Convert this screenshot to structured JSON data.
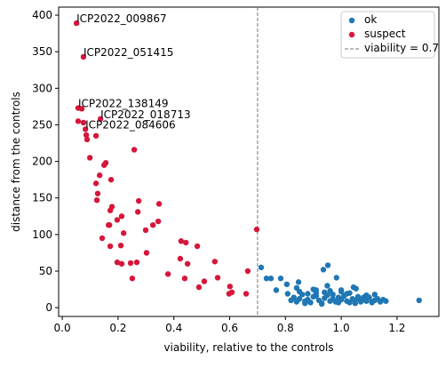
{
  "chart_data": {
    "type": "scatter",
    "x_label": "viability, relative to the controls",
    "y_label": "distance from the controls",
    "xlim": [
      -0.013,
      1.35
    ],
    "ylim": [
      -12,
      411
    ],
    "xticks": [
      {
        "value": 0,
        "label": "0.0"
      },
      0.2,
      0.4,
      0.6,
      0.8,
      {
        "value": 1,
        "label": "1.0"
      },
      1.2
    ],
    "yticks": [
      0,
      50,
      100,
      150,
      200,
      250,
      300,
      350,
      400
    ],
    "legend": "upper right",
    "vline": {
      "x": 0.7,
      "label": "viability = 0.7",
      "color": "#777777"
    },
    "series": [
      {
        "name": "ok",
        "color": "#1f77b4",
        "x": [
          0.82,
          0.83,
          0.84,
          0.85,
          0.86,
          0.87,
          0.88,
          0.89,
          0.9,
          0.91,
          0.92,
          0.93,
          0.94,
          0.95,
          0.96,
          0.97,
          0.98,
          0.99,
          1.0,
          1.01,
          1.02,
          1.03,
          1.04,
          1.05,
          1.06,
          1.07,
          1.08,
          1.09,
          1.1,
          1.11,
          1.12,
          1.13,
          1.14,
          1.15,
          1.16,
          0.85,
          0.88,
          0.91,
          0.94,
          0.97,
          1.0,
          1.03,
          1.06,
          1.09,
          0.87,
          0.93,
          0.99,
          1.05,
          1.11,
          0.9,
          0.96,
          1.02,
          1.08,
          0.84,
          0.95,
          1.0,
          1.12,
          0.713,
          0.732,
          0.748,
          0.783,
          0.767,
          0.805,
          0.808,
          0.847,
          0.936,
          0.952,
          0.91,
          0.983,
          1.044,
          1.053,
          1.279
        ],
        "values": [
          10,
          14,
          8,
          12,
          18,
          9,
          11,
          7,
          15,
          20,
          10,
          6,
          13,
          17,
          9,
          12,
          8,
          14,
          11,
          16,
          9,
          7,
          12,
          10,
          13,
          8,
          11,
          9,
          14,
          7,
          10,
          12,
          8,
          11,
          9,
          22,
          19,
          16,
          21,
          18,
          24,
          20,
          15,
          17,
          6,
          5,
          7,
          6,
          8,
          25,
          23,
          19,
          14,
          27,
          30,
          22,
          18,
          55,
          40,
          40,
          40,
          24,
          32,
          19,
          35,
          52,
          58,
          24,
          41,
          28,
          26,
          10
        ]
      },
      {
        "name": "suspect",
        "color": "#d6163a",
        "x": [
          0.051,
          0.076,
          0.057,
          0.07,
          0.076,
          0.057,
          0.137,
          0.083,
          0.086,
          0.089,
          0.121,
          0.099,
          0.156,
          0.15,
          0.258,
          0.121,
          0.134,
          0.127,
          0.124,
          0.175,
          0.274,
          0.347,
          0.178,
          0.172,
          0.271,
          0.344,
          0.213,
          0.197,
          0.169,
          0.166,
          0.325,
          0.299,
          0.22,
          0.143,
          0.172,
          0.21,
          0.426,
          0.443,
          0.484,
          0.302,
          0.697,
          0.197,
          0.213,
          0.245,
          0.267,
          0.423,
          0.449,
          0.547,
          0.665,
          0.379,
          0.557,
          0.251,
          0.439,
          0.509,
          0.49,
          0.601,
          0.608,
          0.598,
          0.659
        ],
        "values": [
          389,
          343,
          273,
          272,
          253,
          255,
          258,
          244,
          236,
          230,
          235,
          205,
          198,
          195,
          216,
          170,
          181,
          156,
          147,
          175,
          146,
          142,
          138,
          133,
          131,
          118,
          125,
          120,
          113,
          113,
          113,
          106,
          102,
          95,
          84,
          85,
          91,
          89,
          84,
          75,
          107,
          62,
          60,
          61,
          62,
          67,
          60,
          63,
          50,
          46,
          41,
          40,
          40,
          36,
          28,
          29,
          21,
          19,
          19
        ]
      }
    ],
    "annotations": [
      {
        "text": "ICP2022_009867",
        "x": 0.051,
        "y": 389
      },
      {
        "text": "ICP2022_051415",
        "x": 0.076,
        "y": 343
      },
      {
        "text": "ICP2022_138149",
        "x": 0.057,
        "y": 273
      },
      {
        "text": "ICP2022_018713",
        "x": 0.137,
        "y": 258
      },
      {
        "text": "ICP2022_084606",
        "x": 0.083,
        "y": 244
      }
    ]
  }
}
